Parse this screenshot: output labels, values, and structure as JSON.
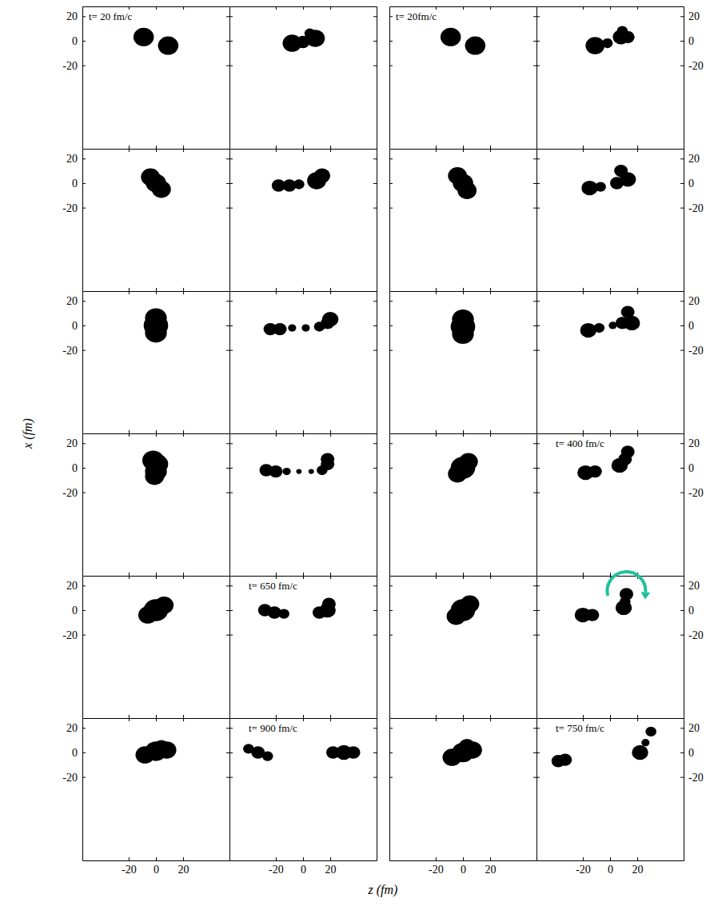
{
  "chart_data": {
    "type": "scatter",
    "marker": "circle",
    "color": "#000000",
    "xlabel": "z (fm)",
    "ylabel": "x (fm)",
    "xlim": [
      -54,
      54
    ],
    "ylim": [
      -88,
      28
    ],
    "xticks": [
      -20,
      0,
      20
    ],
    "yticks": [
      -20,
      0,
      20
    ],
    "panels": [
      {
        "title": "t= 20 fm/c",
        "x": [
          -9,
          9
        ],
        "values": [
          3,
          -4
        ],
        "size": [
          7.5,
          7.5
        ]
      },
      {
        "x": [
          -8,
          0,
          9,
          5
        ],
        "values": [
          -2,
          -1,
          2,
          6
        ],
        "size": [
          7,
          5,
          7,
          4
        ]
      },
      {
        "x": [
          -4,
          0,
          4
        ],
        "values": [
          5,
          0,
          -5
        ],
        "size": [
          7,
          7.5,
          7
        ]
      },
      {
        "x": [
          -18,
          -10,
          -3,
          10,
          14
        ],
        "values": [
          -2,
          -2,
          -1,
          2,
          6
        ],
        "size": [
          5,
          5,
          4,
          7,
          6
        ]
      },
      {
        "x": [
          0,
          0,
          0
        ],
        "values": [
          6,
          0,
          -6
        ],
        "size": [
          8,
          9,
          8
        ]
      },
      {
        "x": [
          -24,
          -17,
          -8,
          2,
          12,
          18,
          20
        ],
        "values": [
          -3,
          -3,
          -2,
          -2,
          -1,
          2,
          5
        ],
        "size": [
          5,
          5,
          3,
          3,
          4,
          5,
          6
        ]
      },
      {
        "x": [
          -2,
          1,
          0,
          -1
        ],
        "values": [
          6,
          3,
          -3,
          -7
        ],
        "size": [
          8,
          8,
          8,
          7
        ]
      },
      {
        "x": [
          -27,
          -20,
          -12,
          -3,
          6,
          14,
          18,
          18
        ],
        "values": [
          -2,
          -3,
          -3,
          -3,
          -3,
          -2,
          3,
          7
        ],
        "size": [
          5,
          5,
          3,
          2,
          2,
          4,
          5,
          5
        ]
      },
      {
        "x": [
          -6,
          0,
          6
        ],
        "values": [
          -4,
          0,
          4
        ],
        "size": [
          7,
          9,
          7
        ]
      },
      {
        "title": "t= 650 fm/c",
        "x": [
          -28,
          -21,
          -14,
          12,
          18,
          19
        ],
        "values": [
          0,
          -2,
          -3,
          -2,
          0,
          5
        ],
        "size": [
          5,
          5,
          4,
          5,
          6,
          5
        ]
      },
      {
        "x": [
          -8,
          0,
          8,
          4
        ],
        "values": [
          -2,
          1,
          2,
          4
        ],
        "size": [
          7,
          8,
          7,
          6
        ]
      },
      {
        "title": "t= 900 fm/c",
        "x": [
          -40,
          -33,
          -26,
          22,
          30,
          37
        ],
        "values": [
          3,
          0,
          -3,
          0,
          0,
          0
        ],
        "size": [
          4,
          5,
          4,
          5,
          6,
          5
        ]
      },
      {
        "title": "t= 20fm/c",
        "x": [
          -9,
          9
        ],
        "values": [
          3,
          -4
        ],
        "size": [
          7.5,
          7.5
        ]
      },
      {
        "x": [
          -11,
          -2,
          8,
          13,
          9
        ],
        "values": [
          -4,
          -2,
          3,
          3,
          8
        ],
        "size": [
          7,
          4,
          6,
          5,
          4
        ]
      },
      {
        "x": [
          -4,
          0,
          3
        ],
        "values": [
          6,
          0,
          -6
        ],
        "size": [
          7,
          7.5,
          7
        ]
      },
      {
        "x": [
          -15,
          -7,
          5,
          13,
          8
        ],
        "values": [
          -4,
          -3,
          0,
          3,
          10
        ],
        "size": [
          6,
          4,
          5,
          6,
          5
        ]
      },
      {
        "x": [
          0,
          0,
          0
        ],
        "values": [
          5,
          -1,
          -7
        ],
        "size": [
          8,
          9,
          8
        ]
      },
      {
        "x": [
          -16,
          -8,
          2,
          9,
          16,
          13
        ],
        "values": [
          -4,
          -2,
          0,
          2,
          2,
          11
        ],
        "size": [
          6,
          4,
          3,
          5,
          6,
          5
        ]
      },
      {
        "x": [
          -4,
          0,
          4
        ],
        "values": [
          -5,
          0,
          5
        ],
        "size": [
          7,
          9,
          7
        ]
      },
      {
        "title": "t= 400 fm/c",
        "x": [
          -18,
          -11,
          7,
          11,
          13
        ],
        "values": [
          -4,
          -3,
          2,
          7,
          13
        ],
        "size": [
          6,
          5,
          6,
          5,
          5
        ]
      },
      {
        "x": [
          -5,
          0,
          5
        ],
        "values": [
          -5,
          0,
          5
        ],
        "size": [
          7,
          9,
          7
        ]
      },
      {
        "x": [
          -20,
          -13,
          10,
          11,
          12
        ],
        "values": [
          -4,
          -4,
          2,
          7,
          13
        ],
        "size": [
          6,
          5,
          6,
          4,
          5
        ]
      },
      {
        "x": [
          -8,
          0,
          7,
          3
        ],
        "values": [
          -4,
          0,
          2,
          5
        ],
        "size": [
          7,
          8,
          7,
          6
        ]
      },
      {
        "title": "t= 750 fm/c",
        "x": [
          -38,
          -33,
          22,
          26,
          30
        ],
        "values": [
          -7,
          -6,
          0,
          8,
          17
        ],
        "size": [
          5,
          5,
          6,
          3,
          4
        ]
      }
    ]
  }
}
